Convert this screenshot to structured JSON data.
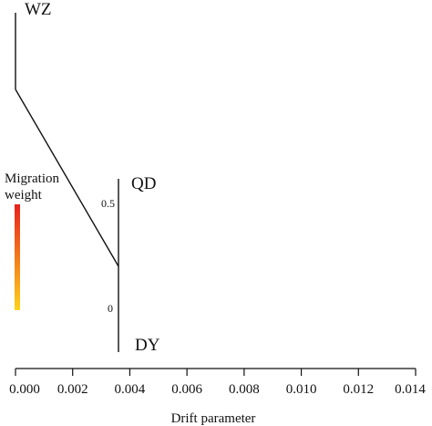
{
  "tree": {
    "tips": [
      {
        "name": "WZ",
        "drift": 0.0
      },
      {
        "name": "QD",
        "drift": 0.00365
      },
      {
        "name": "DY",
        "drift": 0.00365
      }
    ],
    "internal_node_drift": 0.00365,
    "root_drift": 0.0
  },
  "legend": {
    "title_line1": "Migration",
    "title_line2": "weight",
    "tick_high": "0.5",
    "tick_low": "0",
    "gradient_top_color": "#e8211b",
    "gradient_bottom_color": "#ffd21a"
  },
  "axis": {
    "title": "Drift parameter",
    "min": 0.0,
    "max": 0.014,
    "ticks": [
      "0.000",
      "0.002",
      "0.004",
      "0.006",
      "0.008",
      "0.010",
      "0.012",
      "0.014"
    ]
  },
  "colors": {
    "line": "#111111",
    "background": "#ffffff"
  }
}
